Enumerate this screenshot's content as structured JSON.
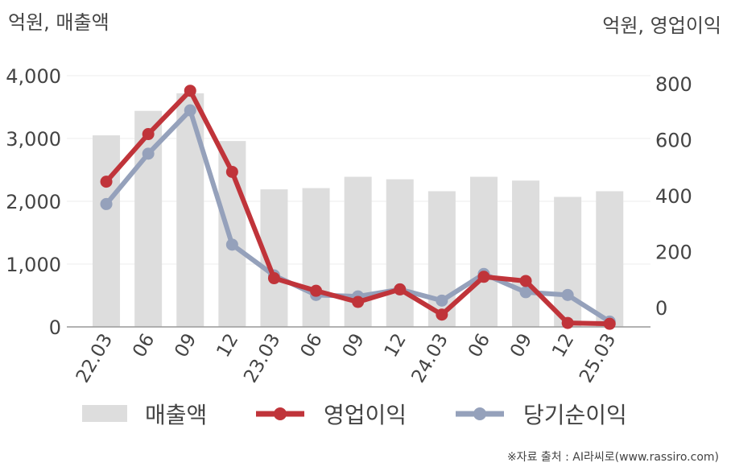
{
  "chart_data": {
    "type": "bar",
    "left_axis_title": "억원, 매출액",
    "right_axis_title": "억원, 영업이익",
    "categories": [
      "22.03",
      "06",
      "09",
      "12",
      "23.03",
      "06",
      "09",
      "12",
      "24.03",
      "06",
      "09",
      "12",
      "25.03"
    ],
    "y_left": {
      "min": 0,
      "max": 4000,
      "ticks": [
        0,
        1000,
        2000,
        3000,
        4000
      ],
      "tick_labels": [
        "0",
        "1,000",
        "2,000",
        "3,000",
        "4,000"
      ]
    },
    "y_right": {
      "ticks": [
        0,
        200,
        400,
        600,
        800
      ],
      "tick_labels": [
        "0",
        "200",
        "400",
        "600",
        "800"
      ]
    },
    "grid": true,
    "legend_position": "bottom",
    "series": [
      {
        "name": "매출액",
        "kind": "bar",
        "axis": "left",
        "color": "#dddddd",
        "values": [
          3050,
          3440,
          3720,
          2960,
          2190,
          2210,
          2390,
          2350,
          2160,
          2390,
          2330,
          2070,
          2160
        ]
      },
      {
        "name": "영업이익",
        "kind": "line",
        "axis": "right",
        "color": "#c0343a",
        "values": [
          450,
          620,
          775,
          485,
          105,
          60,
          20,
          65,
          -25,
          110,
          95,
          -55,
          -58
        ]
      },
      {
        "name": "당기순이익",
        "kind": "line",
        "axis": "right",
        "color": "#95a1bb",
        "values": [
          370,
          550,
          705,
          225,
          115,
          45,
          40,
          65,
          25,
          120,
          55,
          45,
          -50
        ]
      }
    ],
    "source_note": "※자료 출처 : AI라씨로(www.rassiro.com)"
  }
}
